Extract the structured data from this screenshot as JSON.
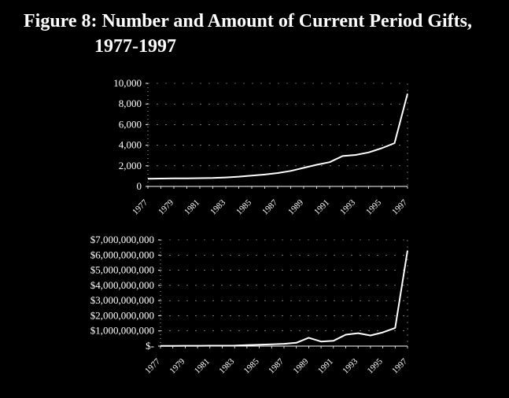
{
  "figure": {
    "title_line1": "Figure 8:  Number and Amount of Current Period Gifts,",
    "title_line2": "1977-1997"
  },
  "colors": {
    "background": "#000000",
    "line": "#ffffff",
    "grid": "#bbbbbb"
  },
  "chart_data": [
    {
      "type": "line",
      "title": "",
      "xlabel": "",
      "ylabel": "",
      "x": [
        1977,
        1978,
        1979,
        1980,
        1981,
        1982,
        1983,
        1984,
        1985,
        1986,
        1987,
        1988,
        1989,
        1990,
        1991,
        1992,
        1993,
        1994,
        1995,
        1996,
        1997
      ],
      "values": [
        750,
        760,
        780,
        790,
        800,
        820,
        870,
        950,
        1050,
        1150,
        1300,
        1500,
        1800,
        2100,
        2350,
        2950,
        3050,
        3300,
        3700,
        4200,
        9000
      ],
      "ylim": [
        0,
        10000
      ],
      "yticks": [
        0,
        2000,
        4000,
        6000,
        8000,
        10000
      ],
      "ytick_labels": [
        "0",
        "2,000",
        "4,000",
        "6,000",
        "8,000",
        "10,000"
      ],
      "xtick_labels": [
        "1977",
        "1979",
        "1981",
        "1983",
        "1985",
        "1987",
        "1989",
        "1991",
        "1993",
        "1995",
        "1997"
      ],
      "grid": true
    },
    {
      "type": "line",
      "title": "",
      "xlabel": "",
      "ylabel": "",
      "x": [
        1977,
        1978,
        1979,
        1980,
        1981,
        1982,
        1983,
        1984,
        1985,
        1986,
        1987,
        1988,
        1989,
        1990,
        1991,
        1992,
        1993,
        1994,
        1995,
        1996,
        1997
      ],
      "values": [
        10000000,
        15000000,
        20000000,
        20000000,
        25000000,
        25000000,
        30000000,
        60000000,
        90000000,
        120000000,
        150000000,
        220000000,
        550000000,
        300000000,
        350000000,
        750000000,
        850000000,
        700000000,
        900000000,
        1200000000,
        6300000000
      ],
      "ylim": [
        0,
        7000000000
      ],
      "yticks": [
        0,
        1000000000,
        2000000000,
        3000000000,
        4000000000,
        5000000000,
        6000000000,
        7000000000
      ],
      "ytick_labels": [
        "$-",
        "$1,000,000,000",
        "$2,000,000,000",
        "$3,000,000,000",
        "$4,000,000,000",
        "$5,000,000,000",
        "$6,000,000,000",
        "$7,000,000,000"
      ],
      "xtick_labels": [
        "1977",
        "1979",
        "1981",
        "1983",
        "1985",
        "1987",
        "1989",
        "1991",
        "1993",
        "1995",
        "1997"
      ],
      "grid": true
    }
  ]
}
